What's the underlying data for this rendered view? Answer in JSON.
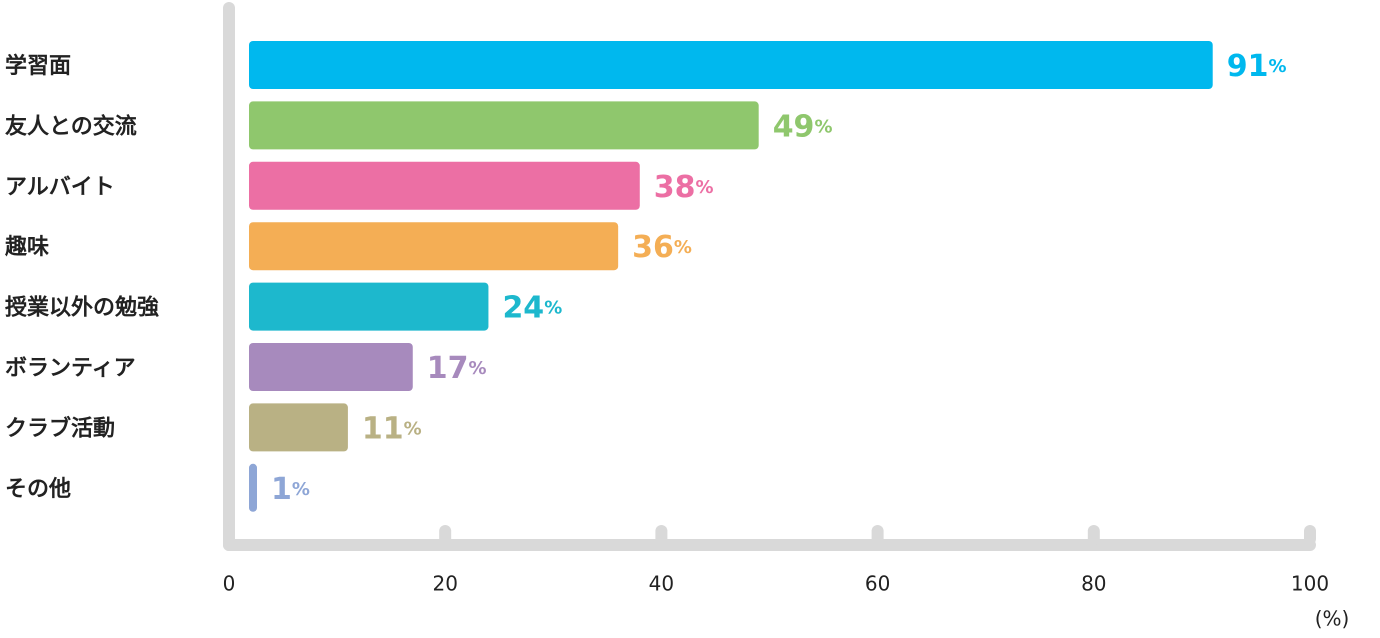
{
  "chart_data": {
    "type": "bar",
    "orientation": "horizontal",
    "categories": [
      "学習面",
      "友人との交流",
      "アルバイト",
      "趣味",
      "授業以外の勉強",
      "ボランティア",
      "クラブ活動",
      "その他"
    ],
    "values": [
      91,
      49,
      38,
      36,
      24,
      17,
      11,
      1
    ],
    "value_labels": [
      "91%",
      "49%",
      "38%",
      "36%",
      "24%",
      "17%",
      "11%",
      "1%"
    ],
    "colors": [
      "#00b8ee",
      "#8fc76d",
      "#ec6fa4",
      "#f4ae55",
      "#1db8cd",
      "#a78abd",
      "#b9b184",
      "#8ea6d6"
    ],
    "xlim": [
      0,
      100
    ],
    "xticks": [
      0,
      20,
      40,
      60,
      80,
      100
    ],
    "x_label": "(%)"
  }
}
